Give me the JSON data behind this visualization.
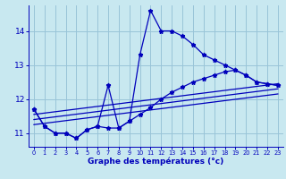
{
  "xlabel": "Graphe des températures (°c)",
  "bg_color": "#c8e8f0",
  "line_color": "#0000bb",
  "grid_color": "#99c4d8",
  "xlim_min": -0.5,
  "xlim_max": 23.5,
  "ylim_min": 10.6,
  "ylim_max": 14.75,
  "yticks": [
    11,
    12,
    13,
    14
  ],
  "xticks": [
    0,
    1,
    2,
    3,
    4,
    5,
    6,
    7,
    8,
    9,
    10,
    11,
    12,
    13,
    14,
    15,
    16,
    17,
    18,
    19,
    20,
    21,
    22,
    23
  ],
  "series1_x": [
    0,
    1,
    2,
    3,
    4,
    5,
    6,
    7,
    8,
    9,
    10,
    11,
    12,
    13,
    14,
    15,
    16,
    17,
    18,
    19,
    20,
    21,
    22,
    23
  ],
  "series1_y": [
    11.7,
    11.2,
    11.0,
    11.0,
    10.85,
    11.1,
    11.2,
    12.4,
    11.15,
    11.35,
    13.3,
    14.6,
    14.0,
    14.0,
    13.85,
    13.6,
    13.3,
    13.15,
    13.0,
    12.85,
    12.7,
    12.5,
    12.45,
    12.4
  ],
  "series2_x": [
    0,
    1,
    2,
    3,
    4,
    5,
    6,
    7,
    8,
    9,
    10,
    11,
    12,
    13,
    14,
    15,
    16,
    17,
    18,
    19,
    20,
    21,
    22,
    23
  ],
  "series2_y": [
    11.7,
    11.2,
    11.0,
    11.0,
    10.85,
    11.1,
    11.2,
    11.15,
    11.15,
    11.35,
    11.55,
    11.75,
    12.0,
    12.2,
    12.35,
    12.5,
    12.6,
    12.7,
    12.8,
    12.85,
    12.7,
    12.5,
    12.45,
    12.4
  ],
  "line1_x": [
    0,
    23
  ],
  "line1_y": [
    11.55,
    12.45
  ],
  "line2_x": [
    0,
    23
  ],
  "line2_y": [
    11.4,
    12.3
  ],
  "line3_x": [
    0,
    23
  ],
  "line3_y": [
    11.25,
    12.15
  ]
}
